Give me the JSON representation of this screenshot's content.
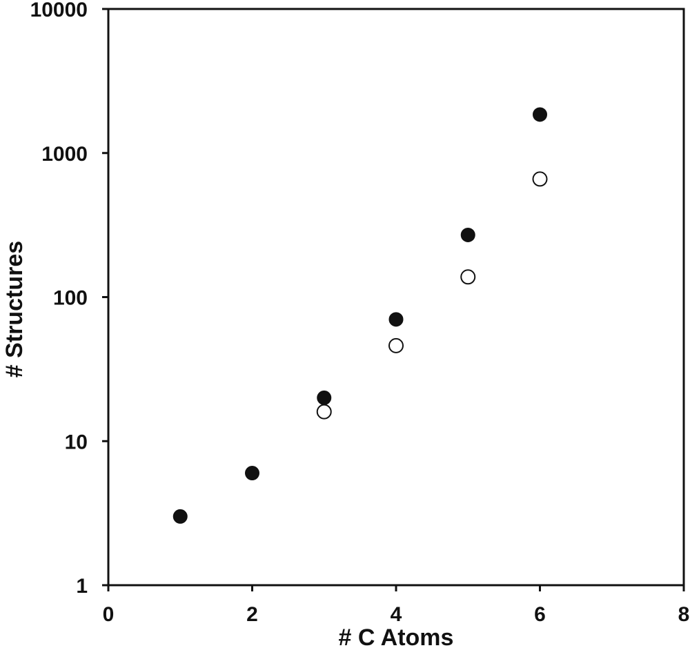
{
  "chart_data": {
    "type": "scatter",
    "title": "",
    "xlabel": "# C Atoms",
    "ylabel": "# Structures",
    "xlim": [
      0,
      8
    ],
    "ylim": [
      1,
      10000
    ],
    "yscale": "log",
    "grid": false,
    "xticks": [
      0,
      2,
      4,
      6,
      8
    ],
    "xtick_labels": [
      "0",
      "2",
      "4",
      "6",
      "8"
    ],
    "yticks": [
      1,
      10,
      100,
      1000,
      10000
    ],
    "ytick_labels": [
      "1",
      "10",
      "100",
      "1000",
      "10000"
    ],
    "series": [
      {
        "marker": "filled-circle",
        "color": "#111111",
        "points": [
          {
            "x": 1,
            "y": 3
          },
          {
            "x": 2,
            "y": 6
          },
          {
            "x": 3,
            "y": 20
          },
          {
            "x": 4,
            "y": 70
          },
          {
            "x": 5,
            "y": 270
          },
          {
            "x": 6,
            "y": 1850
          }
        ]
      },
      {
        "marker": "open-circle",
        "color": "#111111",
        "points": [
          {
            "x": 3,
            "y": 16
          },
          {
            "x": 4,
            "y": 46
          },
          {
            "x": 5,
            "y": 138
          },
          {
            "x": 6,
            "y": 660
          }
        ]
      }
    ]
  }
}
